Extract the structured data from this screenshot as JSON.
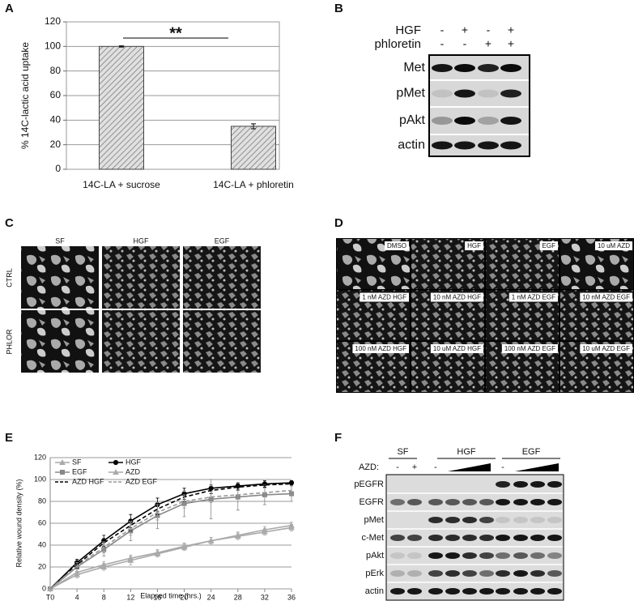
{
  "panel_labels": [
    "A",
    "B",
    "C",
    "D",
    "E",
    "F"
  ],
  "chart_data": [
    {
      "type": "bar",
      "ylabel": "% 14C-lactic acid uptake",
      "categories": [
        "14C-LA + sucrose",
        "14C-LA + phloretin"
      ],
      "values": [
        100,
        35
      ],
      "errors": [
        0.5,
        2
      ],
      "annotation": "**",
      "color": "#c8c8c8",
      "ylim": [
        0,
        120
      ],
      "yticks": [
        0,
        20,
        40,
        60,
        80,
        100,
        120
      ],
      "grid": true
    },
    {
      "type": "line",
      "xlabel": "Elapsed time (hrs.)",
      "ylabel": "Relative wound density (%)",
      "x": [
        0,
        4,
        8,
        12,
        16,
        20,
        24,
        28,
        32,
        36
      ],
      "xlim": [
        0,
        36
      ],
      "xticks": [
        {
          "value": 0,
          "label": "T0"
        },
        4,
        8,
        12,
        16,
        20,
        24,
        28,
        32,
        36
      ],
      "ylim": [
        0,
        120
      ],
      "yticks": [
        0,
        20,
        40,
        60,
        80,
        100,
        120
      ],
      "grid": true,
      "series": [
        {
          "name": "SF",
          "color": "#aaaaaa",
          "marker": "triangle",
          "dashed": false,
          "values": [
            0,
            13,
            20,
            26,
            32,
            38,
            44,
            49,
            54,
            58
          ],
          "errors": [
            0,
            3,
            3,
            4,
            3,
            3,
            3,
            3,
            3,
            3
          ]
        },
        {
          "name": "HGF",
          "color": "#000000",
          "marker": "circle",
          "dashed": false,
          "values": [
            0,
            24,
            44,
            62,
            77,
            87,
            92,
            94,
            96,
            97
          ],
          "errors": [
            0,
            3,
            5,
            6,
            6,
            5,
            3,
            3,
            3,
            2
          ]
        },
        {
          "name": "EGF",
          "color": "#888888",
          "marker": "square",
          "dashed": false,
          "values": [
            0,
            20,
            36,
            53,
            67,
            78,
            82,
            84,
            86,
            87
          ],
          "errors": [
            0,
            4,
            6,
            9,
            12,
            12,
            18,
            12,
            9,
            7
          ]
        },
        {
          "name": "AZD",
          "color": "#aaaaaa",
          "marker": "triangle",
          "dashed": false,
          "values": [
            0,
            15,
            22,
            28,
            33,
            39,
            44,
            48,
            52,
            56
          ],
          "errors": [
            0,
            3,
            3,
            3,
            3,
            3,
            3,
            3,
            3,
            3
          ]
        },
        {
          "name": "AZD HGF",
          "color": "#000000",
          "marker": "none",
          "dashed": true,
          "values": [
            0,
            22,
            42,
            58,
            73,
            84,
            90,
            93,
            95,
            96
          ],
          "errors": [
            0,
            3,
            4,
            5,
            5,
            4,
            3,
            3,
            2,
            2
          ]
        },
        {
          "name": "AZD EGF",
          "color": "#999999",
          "marker": "none",
          "dashed": true,
          "values": [
            0,
            21,
            38,
            55,
            70,
            80,
            84,
            86,
            88,
            90
          ],
          "errors": [
            0,
            3,
            5,
            6,
            7,
            6,
            5,
            4,
            4,
            4
          ]
        }
      ],
      "legend": "upper left"
    }
  ],
  "blot_b": {
    "treatments": [
      {
        "name": "HGF",
        "signs": [
          "-",
          "+",
          "-",
          "+"
        ]
      },
      {
        "name": "phloretin",
        "signs": [
          "-",
          "-",
          "+",
          "+"
        ]
      }
    ],
    "rows": [
      "Met",
      "pMet",
      "pAkt",
      "actin"
    ]
  },
  "micro_c": {
    "columns": [
      "SF",
      "HGF",
      "EGF"
    ],
    "rows": [
      "CTRL",
      "PHLOR"
    ]
  },
  "micro_d": {
    "labels": [
      "DMSO",
      "HGF",
      "EGF",
      "10 uM AZD",
      "1 nM AZD HGF",
      "10 nM AZD HGF",
      "1 nM AZD EGF",
      "10 nM AZD EGF",
      "100 nM AZD HGF",
      "10 uM AZD HGF",
      "100 nM AZD EGF",
      "10 uM AZD EGF"
    ]
  },
  "blot_f": {
    "groups": [
      "SF",
      "HGF",
      "EGF"
    ],
    "treatment": "AZD:",
    "signs": [
      "-",
      "+",
      "-",
      "-"
    ],
    "rows": [
      "pEGFR",
      "EGFR",
      "pMet",
      "c-Met",
      "pAkt",
      "pErk",
      "actin"
    ]
  }
}
